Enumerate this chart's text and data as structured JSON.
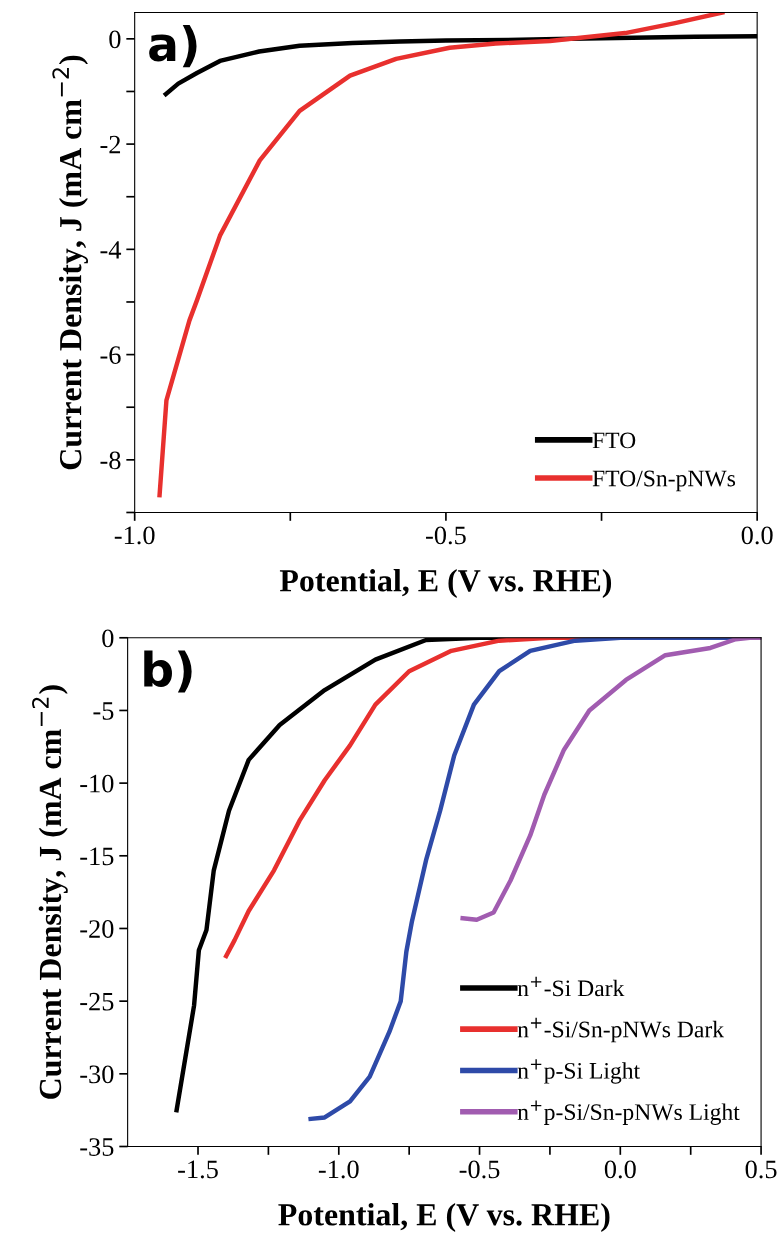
{
  "chart_data": [
    {
      "type": "line",
      "xlabel": "Potential, E (V vs. RHE)",
      "ylabel": "Current Density, J (mA cm$^{−2}$)",
      "annotations": [
        "a)"
      ],
      "xlim": [
        -1.0,
        0.0
      ],
      "xticks": [
        {
          "value": -1.0,
          "label": "-1.0"
        },
        {
          "value": -0.75,
          "label": null
        },
        {
          "value": -0.5,
          "label": "-0.5"
        },
        {
          "value": -0.25,
          "label": null
        },
        {
          "value": 0.0,
          "label": "0.0"
        }
      ],
      "ylim": [
        -9,
        0.5
      ],
      "yticks": [
        {
          "value": -9,
          "label": null
        },
        {
          "value": -8,
          "label": "-8"
        },
        {
          "value": -7,
          "label": null
        },
        {
          "value": -6,
          "label": "-6"
        },
        {
          "value": -5,
          "label": null
        },
        {
          "value": -4,
          "label": "-4"
        },
        {
          "value": -3,
          "label": null
        },
        {
          "value": -2,
          "label": "-2"
        },
        {
          "value": -1,
          "label": null
        },
        {
          "value": 0,
          "label": "0"
        }
      ],
      "legend": "bottom right",
      "grid": false,
      "marker": "none",
      "line_style": "solid",
      "series": [
        {
          "name": "FTO",
          "color": "#000000",
          "x": [
            -0.95,
            -0.93,
            -0.9,
            -0.863,
            -0.8,
            -0.735,
            -0.65,
            -0.574,
            -0.5,
            -0.4,
            -0.3,
            -0.2,
            -0.1,
            0.0
          ],
          "values": [
            -1.05,
            -0.85,
            -0.65,
            -0.42,
            -0.24,
            -0.13,
            -0.08,
            -0.05,
            -0.03,
            -0.02,
            0.0,
            0.02,
            0.04,
            0.05
          ]
        },
        {
          "name": "FTO/Sn-pNWs",
          "color": "#e8302e",
          "x": [
            -0.96,
            -0.949,
            -0.912,
            -0.9,
            -0.863,
            -0.799,
            -0.735,
            -0.654,
            -0.58,
            -0.494,
            -0.42,
            -0.333,
            -0.212,
            -0.132,
            -0.056
          ],
          "values": [
            -8.67,
            -6.87,
            -5.35,
            -4.97,
            -3.74,
            -2.31,
            -1.37,
            -0.7,
            -0.38,
            -0.17,
            -0.09,
            -0.04,
            0.11,
            0.3,
            0.5
          ]
        }
      ]
    },
    {
      "type": "line",
      "xlabel": "Potential, E (V vs. RHE)",
      "ylabel": "Current Density, J (mA cm$^{−2}$)",
      "annotations": [
        "b)"
      ],
      "xlim": [
        -1.75,
        0.5
      ],
      "xticks": [
        {
          "value": -1.5,
          "label": "-1.5"
        },
        {
          "value": -1.25,
          "label": null
        },
        {
          "value": -1.0,
          "label": "-1.0"
        },
        {
          "value": -0.75,
          "label": null
        },
        {
          "value": -0.5,
          "label": "-0.5"
        },
        {
          "value": -0.25,
          "label": null
        },
        {
          "value": 0.0,
          "label": "0.0"
        },
        {
          "value": 0.25,
          "label": null
        },
        {
          "value": 0.5,
          "label": "0.5"
        }
      ],
      "ylim": [
        -35,
        0
      ],
      "yticks": [
        -35,
        -30,
        -25,
        -20,
        -15,
        -10,
        -5,
        0
      ],
      "legend": "bottom right",
      "grid": false,
      "marker": "none",
      "line_style": "solid",
      "series": [
        {
          "name": "n$^{+}$-Si Dark",
          "color": "#000000",
          "x": [
            -1.576,
            -1.514,
            -1.497,
            -1.47,
            -1.444,
            -1.39,
            -1.32,
            -1.21,
            -1.05,
            -0.87,
            -0.69,
            -0.5,
            0.0,
            0.5
          ],
          "values": [
            -32.5,
            -25.3,
            -21.5,
            -20.1,
            -16.0,
            -11.9,
            -8.4,
            -6.0,
            -3.6,
            -1.5,
            -0.15,
            0.0,
            0.0,
            0.0
          ]
        },
        {
          "name": "n$^{+}$-Si/Sn-pNWs Dark",
          "color": "#e8302e",
          "x": [
            -1.4,
            -1.37,
            -1.32,
            -1.23,
            -1.14,
            -1.05,
            -0.96,
            -0.87,
            -0.75,
            -0.6,
            -0.43,
            -0.25,
            0.0,
            0.5
          ],
          "values": [
            -21.9,
            -20.8,
            -18.8,
            -16.0,
            -12.6,
            -9.8,
            -7.4,
            -4.6,
            -2.3,
            -0.9,
            -0.2,
            0.0,
            0.0,
            0.0
          ]
        },
        {
          "name": "n$^{+}$p-Si Light",
          "color": "#2e4aa8",
          "x": [
            -1.1,
            -1.05,
            -0.96,
            -0.89,
            -0.82,
            -0.78,
            -0.76,
            -0.74,
            -0.69,
            -0.64,
            -0.59,
            -0.52,
            -0.43,
            -0.32,
            -0.16,
            0.0,
            0.5
          ],
          "values": [
            -33.1,
            -33.0,
            -31.9,
            -30.2,
            -27.1,
            -25.0,
            -21.6,
            -19.5,
            -15.3,
            -11.9,
            -8.1,
            -4.6,
            -2.3,
            -0.9,
            -0.2,
            0.0,
            0.0
          ]
        },
        {
          "name": "n$^{+}$p-Si/Sn-pNWs Light",
          "color": "#a15cb0",
          "x": [
            -0.56,
            -0.51,
            -0.45,
            -0.39,
            -0.32,
            -0.27,
            -0.2,
            -0.11,
            0.02,
            0.16,
            0.32,
            0.41,
            0.46,
            0.5
          ],
          "values": [
            -19.3,
            -19.4,
            -18.9,
            -16.7,
            -13.6,
            -10.8,
            -7.7,
            -5.0,
            -2.9,
            -1.2,
            -0.7,
            -0.1,
            0.0,
            0.0
          ]
        }
      ]
    }
  ]
}
